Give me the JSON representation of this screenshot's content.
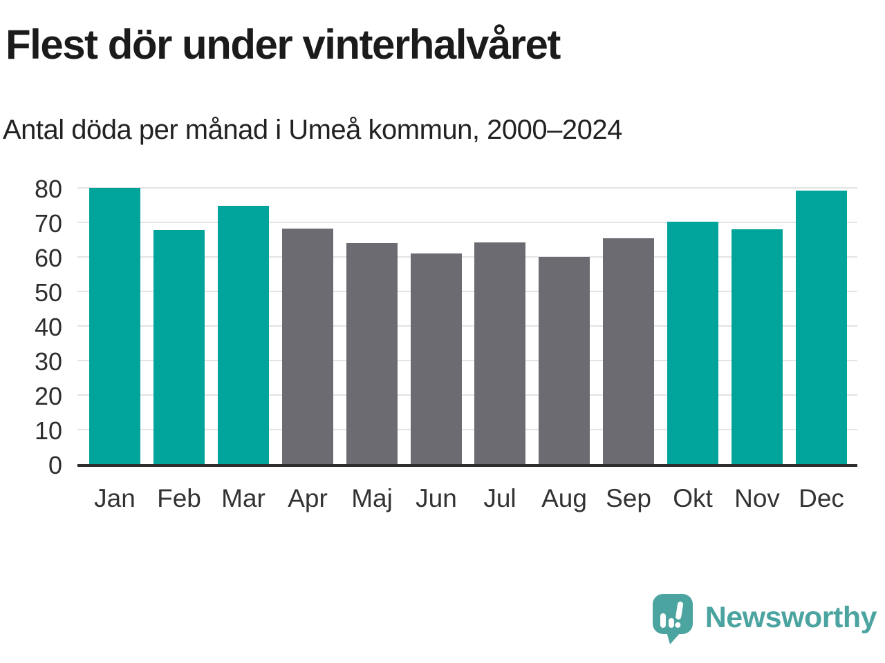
{
  "header": {
    "title": "Flest dör under vinterhalvåret",
    "subtitle": "Antal döda per månad i Umeå kommun, 2000–2024"
  },
  "chart_data": {
    "type": "bar",
    "title": "Flest dör under vinterhalvåret",
    "subtitle": "Antal döda per månad i Umeå kommun, 2000–2024",
    "categories": [
      "Jan",
      "Feb",
      "Mar",
      "Apr",
      "Maj",
      "Jun",
      "Jul",
      "Aug",
      "Sep",
      "Okt",
      "Nov",
      "Dec"
    ],
    "values": [
      80.1,
      67.9,
      74.8,
      68.3,
      64.0,
      61.0,
      64.3,
      60.0,
      65.5,
      70.3,
      68.0,
      79.2
    ],
    "ylim": [
      0,
      80
    ],
    "yticks": [
      0,
      10,
      20,
      30,
      40,
      50,
      60,
      70,
      80
    ],
    "xlabel": "",
    "ylabel": "",
    "grid": "horizontal",
    "legend": "none",
    "colors": {
      "winter": "#00A49B",
      "summer": "#6C6B72"
    },
    "bar_color_keys": [
      "winter",
      "winter",
      "winter",
      "summer",
      "summer",
      "summer",
      "summer",
      "summer",
      "summer",
      "winter",
      "winter",
      "winter"
    ]
  },
  "footer": {
    "brand": "Newsworthy",
    "brand_color": "#4BA49F"
  }
}
